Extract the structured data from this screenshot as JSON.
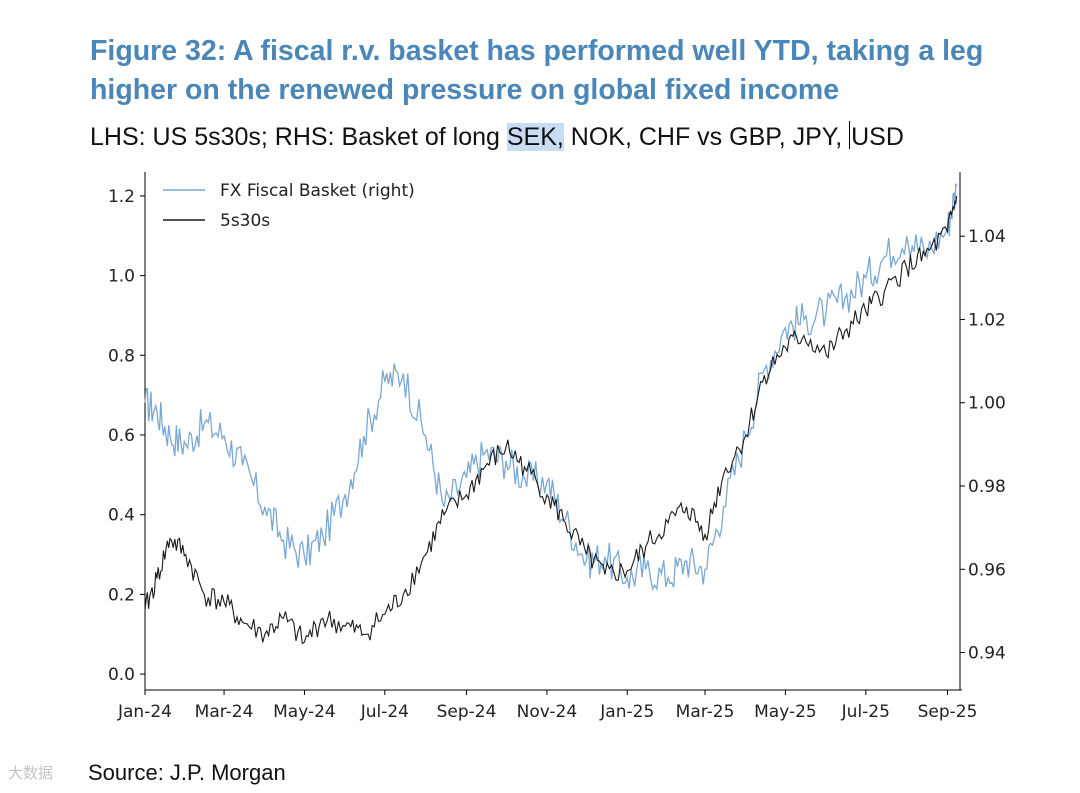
{
  "title": "Figure 32: A fiscal r.v. basket has performed well YTD, taking a leg higher on the renewed pressure on global fixed income",
  "subtitle": {
    "part1": "LHS: US 5s30s; RHS: Basket of long ",
    "highlight": "SEK,",
    "part2": " NOK, CHF vs GBP, JPY, ",
    "part3": "USD"
  },
  "source": "Source: J.P. Morgan",
  "watermark": "大数据",
  "colors": {
    "basket": "#7aa8d2",
    "spread": "#1a1a1a",
    "title": "#4a86b8",
    "highlight": "#c9dcf3"
  },
  "chart_data": {
    "type": "line",
    "x_ticks": [
      "Jan-24",
      "Mar-24",
      "May-24",
      "Jul-24",
      "Sep-24",
      "Nov-24",
      "Jan-25",
      "Mar-25",
      "May-25",
      "Jul-25",
      "Sep-25"
    ],
    "y_left": {
      "ticks": [
        "0.0",
        "0.2",
        "0.4",
        "0.6",
        "0.8",
        "1.0",
        "1.2"
      ],
      "range": [
        -0.04,
        1.24
      ]
    },
    "y_right": {
      "ticks": [
        "0.94",
        "0.96",
        "0.98",
        "1.00",
        "1.02",
        "1.04"
      ],
      "range": [
        0.931,
        1.0535
      ]
    },
    "legend": {
      "position": "top-left",
      "entries": [
        "FX Fiscal Basket (right)",
        "5s30s"
      ]
    },
    "series": [
      {
        "name": "5s30s",
        "axis": "left",
        "x": [
          "2024-01-01",
          "2024-01-10",
          "2024-01-20",
          "2024-02-01",
          "2024-02-15",
          "2024-03-01",
          "2024-03-15",
          "2024-04-01",
          "2024-04-15",
          "2024-05-01",
          "2024-05-15",
          "2024-06-01",
          "2024-06-15",
          "2024-07-01",
          "2024-07-15",
          "2024-08-01",
          "2024-08-15",
          "2024-09-01",
          "2024-09-15",
          "2024-10-01",
          "2024-10-15",
          "2024-11-01",
          "2024-11-15",
          "2024-12-01",
          "2024-12-15",
          "2025-01-01",
          "2025-01-15",
          "2025-02-01",
          "2025-02-15",
          "2025-03-01",
          "2025-03-15",
          "2025-04-01",
          "2025-04-15",
          "2025-05-01",
          "2025-05-15",
          "2025-06-01",
          "2025-06-15",
          "2025-07-01",
          "2025-07-15",
          "2025-08-01",
          "2025-08-15",
          "2025-09-01",
          "2025-09-08"
        ],
        "values": [
          0.16,
          0.24,
          0.34,
          0.3,
          0.2,
          0.18,
          0.13,
          0.1,
          0.14,
          0.08,
          0.14,
          0.12,
          0.1,
          0.15,
          0.2,
          0.3,
          0.4,
          0.45,
          0.52,
          0.57,
          0.52,
          0.45,
          0.38,
          0.3,
          0.25,
          0.26,
          0.32,
          0.38,
          0.42,
          0.35,
          0.5,
          0.6,
          0.75,
          0.82,
          0.85,
          0.8,
          0.86,
          0.91,
          0.96,
          1.02,
          1.05,
          1.11,
          1.2
        ]
      },
      {
        "name": "FX Fiscal Basket (right)",
        "axis": "right",
        "x": [
          "2024-01-01",
          "2024-01-10",
          "2024-01-20",
          "2024-02-01",
          "2024-02-15",
          "2024-03-01",
          "2024-03-15",
          "2024-04-01",
          "2024-04-15",
          "2024-05-01",
          "2024-05-15",
          "2024-06-01",
          "2024-06-15",
          "2024-07-01",
          "2024-07-15",
          "2024-08-01",
          "2024-08-15",
          "2024-09-01",
          "2024-09-15",
          "2024-10-01",
          "2024-10-15",
          "2024-11-01",
          "2024-11-15",
          "2024-12-01",
          "2024-12-15",
          "2025-01-01",
          "2025-01-15",
          "2025-02-01",
          "2025-02-15",
          "2025-03-01",
          "2025-03-15",
          "2025-04-01",
          "2025-04-15",
          "2025-05-01",
          "2025-05-15",
          "2025-06-01",
          "2025-06-15",
          "2025-07-01",
          "2025-07-15",
          "2025-08-01",
          "2025-08-15",
          "2025-09-01",
          "2025-09-08"
        ],
        "values": [
          1.0,
          0.998,
          0.992,
          0.99,
          0.995,
          0.992,
          0.985,
          0.975,
          0.967,
          0.963,
          0.968,
          0.978,
          0.992,
          1.005,
          1.007,
          0.992,
          0.975,
          0.982,
          0.988,
          0.986,
          0.982,
          0.981,
          0.972,
          0.962,
          0.963,
          0.958,
          0.96,
          0.958,
          0.962,
          0.96,
          0.975,
          0.992,
          1.008,
          1.018,
          1.02,
          1.022,
          1.025,
          1.03,
          1.035,
          1.04,
          1.036,
          1.042,
          1.052
        ]
      }
    ]
  }
}
